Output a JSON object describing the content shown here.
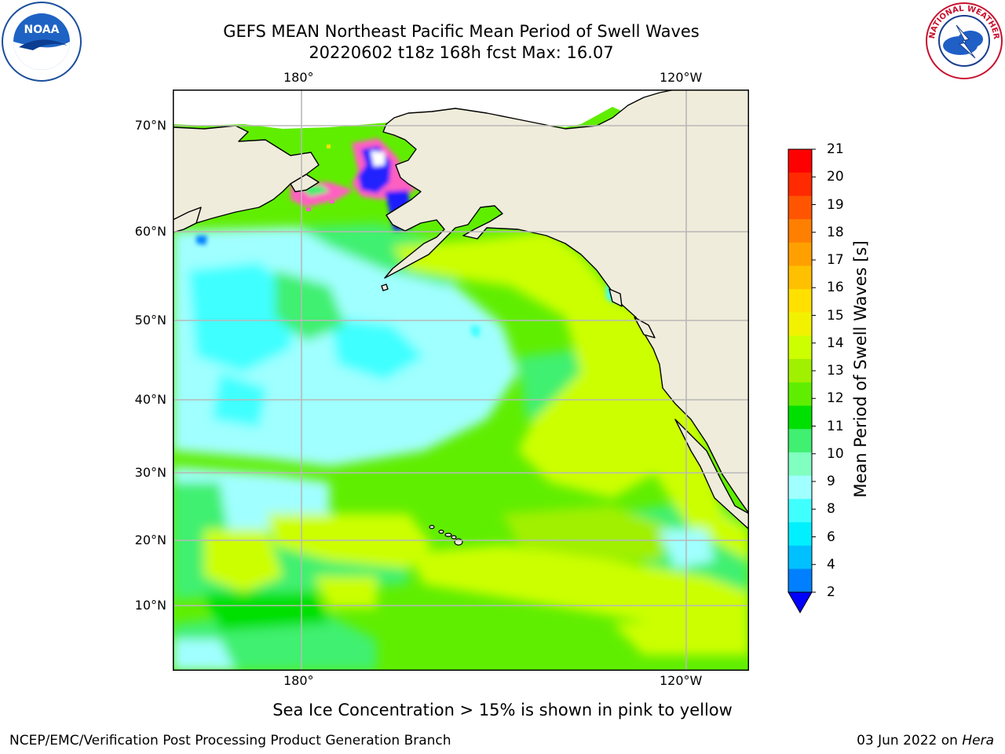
{
  "title": {
    "line1": "GEFS MEAN Northeast Pacific Mean Period of Swell Waves",
    "line2": "20220602 t18z 168h fcst   Max: 16.07"
  },
  "logos": {
    "noaa": "NOAA",
    "nws": "NATIONAL WEATHER SERVICE"
  },
  "map": {
    "lon_labels_top": [
      "180°",
      "120°W"
    ],
    "lon_labels_bottom": [
      "180°",
      "120°W"
    ],
    "lat_labels": [
      "70°N",
      "60°N",
      "50°N",
      "40°N",
      "30°N",
      "20°N",
      "10°N"
    ],
    "land_color": "#efecdb",
    "grid_color": "#b8b8b8"
  },
  "colorbar": {
    "label": "Mean Period of Swell Waves [s]",
    "ticks": [
      "21",
      "20",
      "19",
      "18",
      "17",
      "16",
      "15",
      "14",
      "13",
      "12",
      "11",
      "10",
      "9",
      "8",
      "6",
      "4",
      "2"
    ],
    "colors_top_to_bottom": [
      "#ff0000",
      "#ff2a00",
      "#ff5500",
      "#ff7f00",
      "#ffa000",
      "#ffc000",
      "#ffe000",
      "#f2f200",
      "#ccff00",
      "#a0f000",
      "#60ee00",
      "#00e000",
      "#40f070",
      "#80ffc0",
      "#a0ffff",
      "#40ffff",
      "#00f0ff",
      "#00c0ff",
      "#0080ff"
    ],
    "extend_color": "#0000ff"
  },
  "note": "Sea Ice Concentration > 15% is shown in pink to yellow",
  "footer": {
    "left": "NCEP/EMC/Verification Post Processing Product Generation Branch",
    "right_date": "03 Jun 2022 on ",
    "right_host": "Hera"
  }
}
